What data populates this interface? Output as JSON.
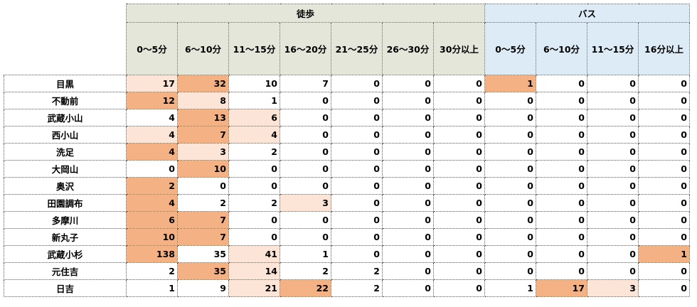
{
  "header": {
    "groups": [
      {
        "label": "徒歩",
        "color": "#e3e6d8",
        "columns": [
          "0～5分",
          "6～10分",
          "11～15分",
          "16～20分",
          "21～25分",
          "26～30分",
          "30分以上"
        ]
      },
      {
        "label": "バス",
        "color": "#ddebf7",
        "columns": [
          "0～5分",
          "6～10分",
          "11～15分",
          "16分以上"
        ]
      }
    ]
  },
  "colors": {
    "dark": "#f4b183",
    "light": "#fce4d6"
  },
  "rows": [
    {
      "station": "目黒",
      "values": [
        17,
        32,
        10,
        7,
        0,
        0,
        0,
        1,
        0,
        0,
        0
      ],
      "fills": [
        "light",
        "dark",
        null,
        null,
        null,
        null,
        null,
        "dark",
        null,
        null,
        null
      ]
    },
    {
      "station": "不動前",
      "values": [
        12,
        8,
        1,
        0,
        0,
        0,
        0,
        0,
        0,
        0,
        0
      ],
      "fills": [
        "dark",
        "light",
        null,
        null,
        null,
        null,
        null,
        null,
        null,
        null,
        null
      ]
    },
    {
      "station": "武蔵小山",
      "values": [
        4,
        13,
        6,
        0,
        0,
        0,
        0,
        0,
        0,
        0,
        0
      ],
      "fills": [
        null,
        "dark",
        "light",
        null,
        null,
        null,
        null,
        null,
        null,
        null,
        null
      ]
    },
    {
      "station": "西小山",
      "values": [
        4,
        7,
        4,
        0,
        0,
        0,
        0,
        0,
        0,
        0,
        0
      ],
      "fills": [
        "light",
        "dark",
        "light",
        null,
        null,
        null,
        null,
        null,
        null,
        null,
        null
      ]
    },
    {
      "station": "洗足",
      "values": [
        4,
        3,
        2,
        0,
        0,
        0,
        0,
        0,
        0,
        0,
        0
      ],
      "fills": [
        "dark",
        "light",
        null,
        null,
        null,
        null,
        null,
        null,
        null,
        null,
        null
      ]
    },
    {
      "station": "大岡山",
      "values": [
        0,
        10,
        0,
        0,
        0,
        0,
        0,
        0,
        0,
        0,
        0
      ],
      "fills": [
        null,
        "dark",
        null,
        null,
        null,
        null,
        null,
        null,
        null,
        null,
        null
      ]
    },
    {
      "station": "奥沢",
      "values": [
        2,
        0,
        0,
        0,
        0,
        0,
        0,
        0,
        0,
        0,
        0
      ],
      "fills": [
        "dark",
        null,
        null,
        null,
        null,
        null,
        null,
        null,
        null,
        null,
        null
      ]
    },
    {
      "station": "田園調布",
      "values": [
        4,
        2,
        2,
        3,
        0,
        0,
        0,
        0,
        0,
        0,
        0
      ],
      "fills": [
        "dark",
        null,
        null,
        "light",
        null,
        null,
        null,
        null,
        null,
        null,
        null
      ]
    },
    {
      "station": "多摩川",
      "values": [
        6,
        7,
        0,
        0,
        0,
        0,
        0,
        0,
        0,
        0,
        0
      ],
      "fills": [
        "dark",
        "dark",
        null,
        null,
        null,
        null,
        null,
        null,
        null,
        null,
        null
      ]
    },
    {
      "station": "新丸子",
      "values": [
        10,
        7,
        0,
        0,
        0,
        0,
        0,
        0,
        0,
        0,
        0
      ],
      "fills": [
        "dark",
        "dark",
        null,
        null,
        null,
        null,
        null,
        null,
        null,
        null,
        null
      ]
    },
    {
      "station": "武蔵小杉",
      "values": [
        138,
        35,
        41,
        1,
        0,
        0,
        0,
        0,
        0,
        0,
        1
      ],
      "fills": [
        "dark",
        null,
        "light",
        null,
        null,
        null,
        null,
        null,
        null,
        null,
        "dark"
      ]
    },
    {
      "station": "元住吉",
      "values": [
        2,
        35,
        14,
        2,
        2,
        0,
        0,
        0,
        0,
        0,
        0
      ],
      "fills": [
        null,
        "dark",
        "light",
        null,
        null,
        null,
        null,
        null,
        null,
        null,
        null
      ]
    },
    {
      "station": "日吉",
      "values": [
        1,
        9,
        21,
        22,
        2,
        0,
        0,
        1,
        17,
        3,
        0
      ],
      "fills": [
        null,
        null,
        "light",
        "dark",
        null,
        null,
        null,
        null,
        "dark",
        "light",
        null
      ]
    }
  ]
}
